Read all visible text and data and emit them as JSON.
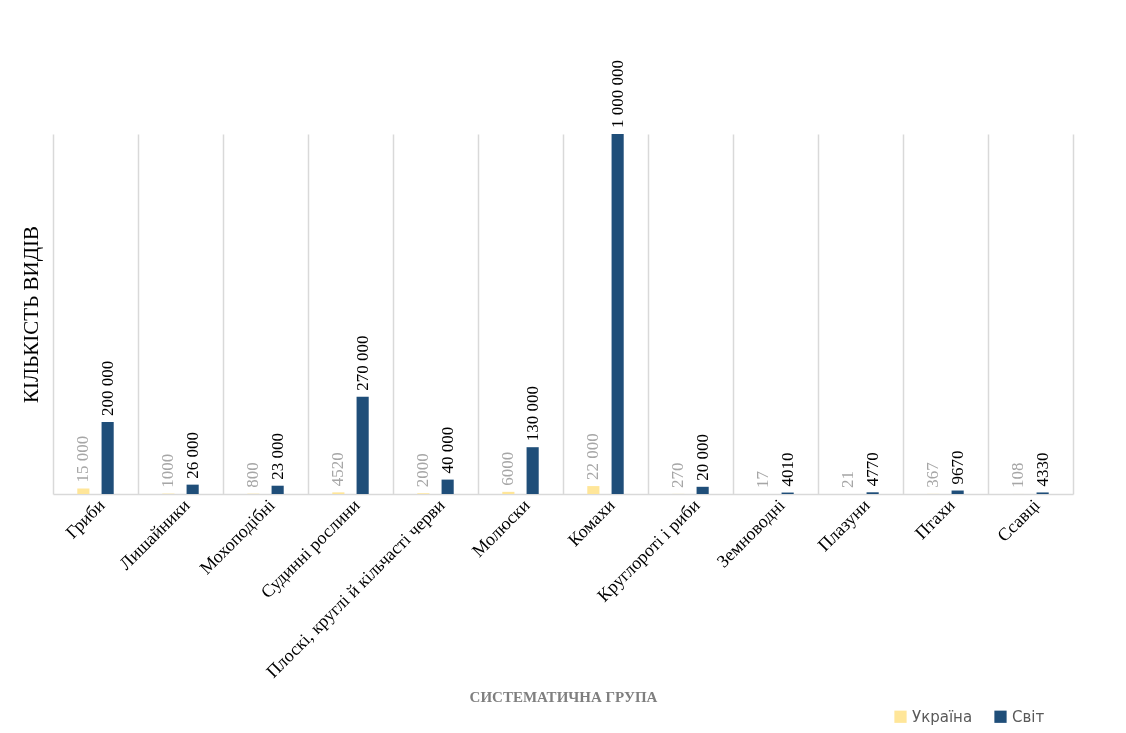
{
  "chart_data": {
    "type": "bar",
    "xlabel": "СИСТЕМАТИЧНА ГРУПА",
    "ylabel": "КІЛЬКІСТЬ ВИДІВ",
    "categories": [
      "Гриби",
      "Лишайники",
      "Мохоподібні",
      "Судинні рослини",
      "Плоскі, круглі й кільчасті черви",
      "Молюски",
      "Комахи",
      "Круглороті і риби",
      "Земноводні",
      "Плазуни",
      "Птахи",
      "Ссавці"
    ],
    "series": [
      {
        "name": "Україна",
        "color": "#ffe699",
        "values": [
          15000,
          1000,
          800,
          4520,
          2000,
          6000,
          22000,
          270,
          17,
          21,
          367,
          108
        ],
        "value_labels": [
          "15 000",
          "1000",
          "800",
          "4520",
          "2000",
          "6000",
          "22 000",
          "270",
          "17",
          "21",
          "367",
          "108"
        ]
      },
      {
        "name": "Світ",
        "color": "#1f4e79",
        "values": [
          200000,
          26000,
          23000,
          270000,
          40000,
          130000,
          1000000,
          20000,
          4010,
          4770,
          9670,
          4330
        ],
        "value_labels": [
          "200 000",
          "26 000",
          "23 000",
          "270 000",
          "40 000",
          "130 000",
          "1 000 000",
          "20 000",
          "4010",
          "4770",
          "9670",
          "4330"
        ]
      }
    ],
    "grid": "x",
    "legend": "bottom right",
    "tick_labels": "x"
  }
}
